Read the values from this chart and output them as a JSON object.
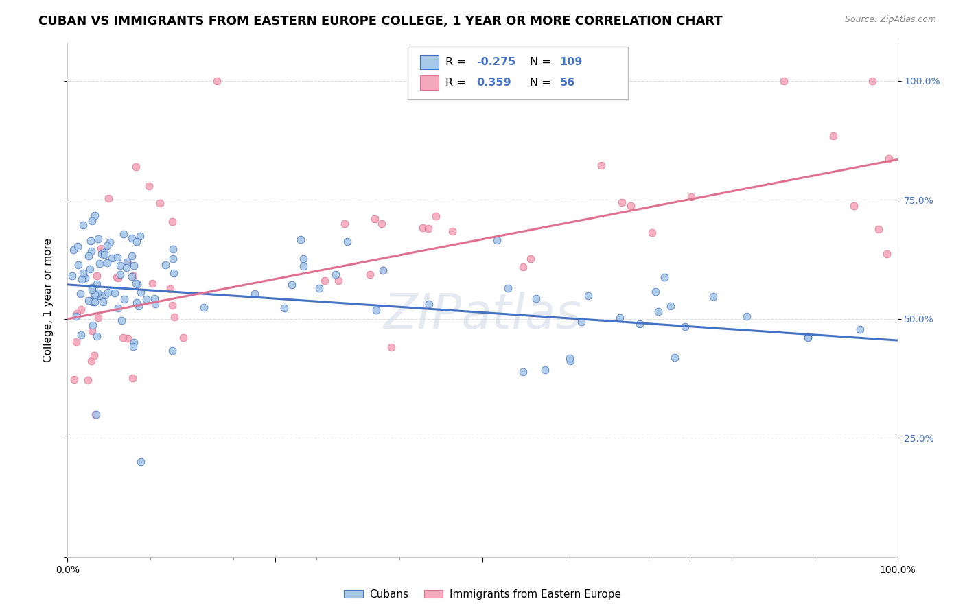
{
  "title": "CUBAN VS IMMIGRANTS FROM EASTERN EUROPE COLLEGE, 1 YEAR OR MORE CORRELATION CHART",
  "source": "Source: ZipAtlas.com",
  "ylabel": "College, 1 year or more",
  "xlim": [
    0.0,
    1.0
  ],
  "ylim": [
    0.0,
    1.08
  ],
  "cubans_color": "#a8c8e8",
  "eastern_europe_color": "#f4a8bc",
  "blue_line_color": "#4472c4",
  "pink_line_color": "#e07090",
  "bottom_legend": [
    "Cubans",
    "Immigrants from Eastern Europe"
  ],
  "blue_line_y_start": 0.572,
  "blue_line_y_end": 0.455,
  "pink_line_y_start": 0.5,
  "pink_line_y_end": 0.835,
  "title_fontsize": 13,
  "axis_label_fontsize": 11,
  "tick_fontsize": 10,
  "grid_color": "#dddddd",
  "background_color": "#ffffff"
}
